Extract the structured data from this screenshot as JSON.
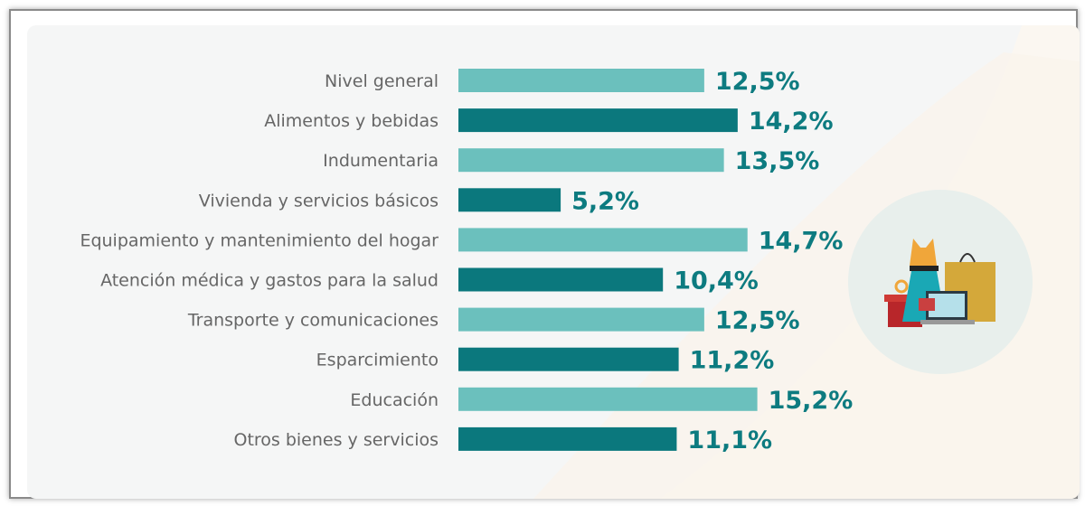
{
  "chart_data": {
    "type": "bar",
    "orientation": "horizontal",
    "categories": [
      "Nivel general",
      "Alimentos y bebidas",
      "Indumentaria",
      "Vivienda y servicios básicos",
      "Equipamiento y mantenimiento del hogar",
      "Atención médica y gastos para la salud",
      "Transporte y comunicaciones",
      "Esparcimiento",
      "Educación",
      "Otros bienes y servicios"
    ],
    "values": [
      12.5,
      14.2,
      13.5,
      5.2,
      14.7,
      10.4,
      12.5,
      11.2,
      15.2,
      11.1
    ],
    "value_labels": [
      "12,5%",
      "14,2%",
      "13,5%",
      "5,2%",
      "14,7%",
      "10,4%",
      "12,5%",
      "11,2%",
      "15,2%",
      "11,1%"
    ],
    "unit": "%",
    "colors": [
      "#6bc0bd",
      "#0b787d"
    ],
    "grid": false,
    "legend": "none"
  },
  "decoration": {
    "icon": "shopping-illustration-icon",
    "circle_color": "#e8efec"
  }
}
